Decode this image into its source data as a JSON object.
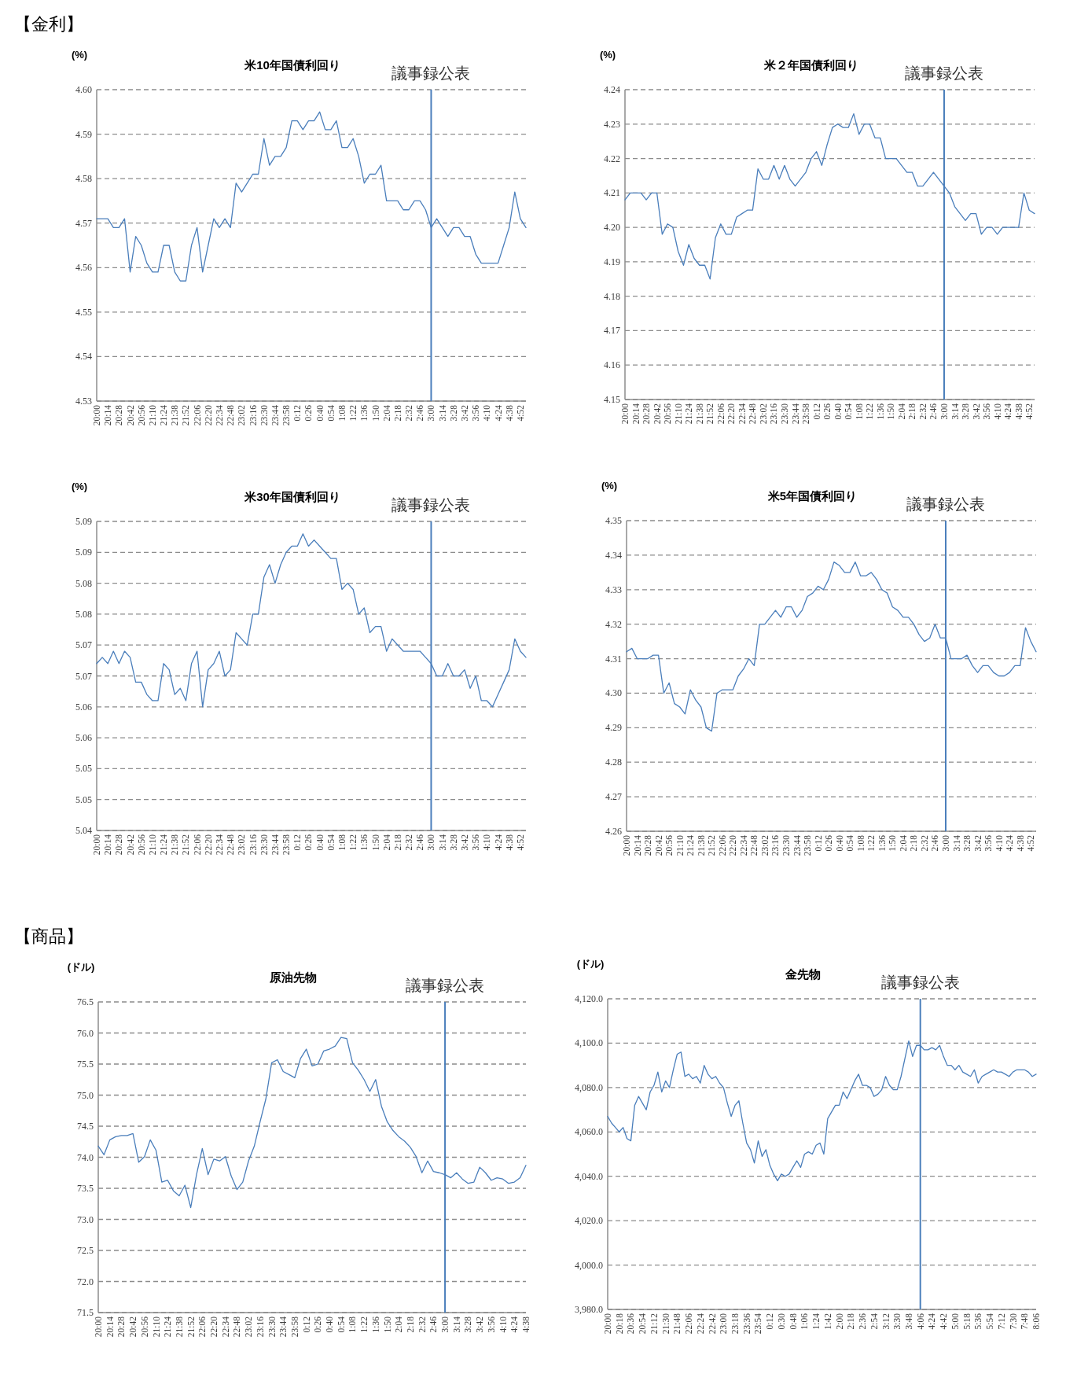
{
  "chart_data": [
    {
      "type": "line",
      "title": "米10年国債利回り",
      "ylabel": "(%)",
      "annotations": [
        "【金利】"
      ],
      "categories": [
        "20:00",
        null,
        "20:14",
        null,
        "20:28",
        null,
        "20:42",
        null,
        "20:56",
        null,
        "21:10",
        null,
        "21:24",
        null,
        "21:38",
        null,
        "21:52",
        null,
        "22:06",
        null,
        "22:20",
        null,
        "22:34",
        null,
        "22:48",
        null,
        "23:02",
        null,
        "23:16",
        null,
        "23:30",
        null,
        "23:44",
        null,
        "23:58",
        null,
        "0:12",
        null,
        "0:26",
        null,
        "0:40",
        null,
        "0:54",
        null,
        "1:08",
        null,
        "1:22",
        null,
        "1:36",
        null,
        "1:50",
        null,
        "2:04",
        null,
        "2:18",
        null,
        "2:32",
        null,
        "2:46",
        null,
        "3:00",
        null,
        "3:14",
        null,
        "3:28",
        null,
        "3:42",
        null,
        "3:56",
        null,
        "4:10",
        null,
        "4:24",
        null,
        "4:38",
        null,
        "4:52",
        null
      ],
      "series": [
        {
          "color": "#4a7ebb",
          "values": [
            4.571,
            4.571,
            4.571,
            4.569,
            4.569,
            4.571,
            4.559,
            4.567,
            4.565,
            4.561,
            4.559,
            4.559,
            4.565,
            4.565,
            4.559,
            4.557,
            4.557,
            4.565,
            4.569,
            4.559,
            4.565,
            4.571,
            4.569,
            4.571,
            4.569,
            4.579,
            4.577,
            4.579,
            4.581,
            4.581,
            4.589,
            4.583,
            4.585,
            4.585,
            4.587,
            4.593,
            4.593,
            4.591,
            4.593,
            4.593,
            4.595,
            4.591,
            4.591,
            4.593,
            4.587,
            4.587,
            4.589,
            4.585,
            4.579,
            4.581,
            4.581,
            4.583,
            4.575,
            4.575,
            4.575,
            4.573,
            4.573,
            4.575,
            4.575,
            4.573,
            4.569,
            4.571,
            4.569,
            4.567,
            4.569,
            4.569,
            4.567,
            4.567,
            4.563,
            4.561,
            4.561,
            4.561,
            4.561,
            4.565,
            4.569,
            4.577,
            4.571,
            4.569
          ]
        }
      ],
      "ylim": [
        4.53,
        4.6
      ],
      "yticks": [
        4.53,
        4.54,
        4.55,
        4.56,
        4.57,
        4.58,
        4.59,
        {
          "value": 4.6,
          "label": "4.60"
        }
      ],
      "grid": "y",
      "ref_lines": [
        {
          "axis": "x",
          "value": "3:00",
          "label": "議事録公表",
          "color": "#4a7ebb"
        }
      ]
    },
    {
      "type": "line",
      "title": "米２年国債利回り",
      "ylabel": "(%)",
      "categories": [
        "20:00",
        null,
        "20:14",
        null,
        "20:28",
        null,
        "20:42",
        null,
        "20:56",
        null,
        "21:10",
        null,
        "21:24",
        null,
        "21:38",
        null,
        "21:52",
        null,
        "22:06",
        null,
        "22:20",
        null,
        "22:34",
        null,
        "22:48",
        null,
        "23:02",
        null,
        "23:16",
        null,
        "23:30",
        null,
        "23:44",
        null,
        "23:58",
        null,
        "0:12",
        null,
        "0:26",
        null,
        "0:40",
        null,
        "0:54",
        null,
        "1:08",
        null,
        "1:22",
        null,
        "1:36",
        null,
        "1:50",
        null,
        "2:04",
        null,
        "2:18",
        null,
        "2:32",
        null,
        "2:46",
        null,
        "3:00",
        null,
        "3:14",
        null,
        "3:28",
        null,
        "3:42",
        null,
        "3:56",
        null,
        "4:10",
        null,
        "4:24",
        null,
        "4:38",
        null,
        "4:52",
        null
      ],
      "series": [
        {
          "color": "#4a7ebb",
          "values": [
            4.208,
            4.21,
            4.21,
            4.21,
            4.208,
            4.21,
            4.21,
            4.198,
            4.201,
            4.2,
            4.193,
            4.189,
            4.195,
            4.191,
            4.189,
            4.189,
            4.185,
            4.197,
            4.201,
            4.198,
            4.198,
            4.203,
            4.204,
            4.205,
            4.205,
            4.217,
            4.214,
            4.214,
            4.218,
            4.214,
            4.218,
            4.214,
            4.212,
            4.214,
            4.216,
            4.22,
            4.222,
            4.218,
            4.224,
            4.229,
            4.23,
            4.229,
            4.229,
            4.233,
            4.227,
            4.23,
            4.23,
            4.226,
            4.226,
            4.22,
            4.22,
            4.22,
            4.218,
            4.216,
            4.216,
            4.212,
            4.212,
            4.214,
            4.216,
            4.214,
            4.212,
            4.21,
            4.206,
            4.204,
            4.202,
            4.204,
            4.204,
            4.198,
            4.2,
            4.2,
            4.198,
            4.2,
            4.2,
            4.2,
            4.2,
            4.21,
            4.205,
            4.204
          ]
        }
      ],
      "ylim": [
        4.15,
        4.24
      ],
      "yticks": [
        4.15,
        4.16,
        4.17,
        4.18,
        4.19,
        {
          "value": 4.2,
          "label": "4.20"
        },
        4.21,
        4.22,
        4.23,
        4.24
      ],
      "grid": "y",
      "ref_lines": [
        {
          "axis": "x",
          "value": "3:00",
          "label": "議事録公表",
          "color": "#4a7ebb"
        }
      ]
    },
    {
      "type": "line",
      "title": "米30年国債利回り",
      "ylabel": "(%)",
      "categories": [
        "20:00",
        null,
        "20:14",
        null,
        "20:28",
        null,
        "20:42",
        null,
        "20:56",
        null,
        "21:10",
        null,
        "21:24",
        null,
        "21:38",
        null,
        "21:52",
        null,
        "22:06",
        null,
        "22:20",
        null,
        "22:34",
        null,
        "22:48",
        null,
        "23:02",
        null,
        "23:16",
        null,
        "23:30",
        null,
        "23:44",
        null,
        "23:58",
        null,
        "0:12",
        null,
        "0:26",
        null,
        "0:40",
        null,
        "0:54",
        null,
        "1:08",
        null,
        "1:22",
        null,
        "1:36",
        null,
        "1:50",
        null,
        "2:04",
        null,
        "2:18",
        null,
        "2:32",
        null,
        "2:46",
        null,
        "3:00",
        null,
        "3:14",
        null,
        "3:28",
        null,
        "3:42",
        null,
        "3:56",
        null,
        "4:10",
        null,
        "4:24",
        null,
        "4:38",
        null,
        "4:52",
        null
      ],
      "series": [
        {
          "color": "#4a7ebb",
          "values": [
            5.067,
            5.068,
            5.067,
            5.069,
            5.067,
            5.069,
            5.068,
            5.064,
            5.064,
            5.062,
            5.061,
            5.061,
            5.067,
            5.066,
            5.062,
            5.063,
            5.061,
            5.067,
            5.069,
            5.06,
            5.066,
            5.067,
            5.069,
            5.065,
            5.066,
            5.072,
            5.071,
            5.07,
            5.075,
            5.075,
            5.081,
            5.083,
            5.08,
            5.083,
            5.085,
            5.086,
            5.086,
            5.088,
            5.086,
            5.087,
            5.086,
            5.085,
            5.084,
            5.084,
            5.079,
            5.08,
            5.079,
            5.075,
            5.076,
            5.072,
            5.073,
            5.073,
            5.069,
            5.071,
            5.07,
            5.069,
            5.069,
            5.069,
            5.069,
            5.068,
            5.067,
            5.065,
            5.065,
            5.067,
            5.065,
            5.065,
            5.066,
            5.063,
            5.065,
            5.061,
            5.061,
            5.06,
            5.062,
            5.064,
            5.066,
            5.071,
            5.069,
            5.068
          ]
        }
      ],
      "ylim": [
        5.04,
        5.09
      ],
      "yticks": [
        {
          "value": 5.04,
          "label": "5.04"
        },
        {
          "value": 5.045,
          "label": "5.05"
        },
        {
          "value": 5.05,
          "label": "5.05"
        },
        {
          "value": 5.055,
          "label": "5.06"
        },
        {
          "value": 5.06,
          "label": "5.06"
        },
        {
          "value": 5.065,
          "label": "5.07"
        },
        {
          "value": 5.07,
          "label": "5.07"
        },
        {
          "value": 5.075,
          "label": "5.08"
        },
        {
          "value": 5.08,
          "label": "5.08"
        },
        {
          "value": 5.085,
          "label": "5.09"
        },
        {
          "value": 5.09,
          "label": "5.09"
        }
      ],
      "grid": "y",
      "ref_lines": [
        {
          "axis": "x",
          "value": "3:00",
          "label": "議事録公表",
          "color": "#4a7ebb"
        }
      ]
    },
    {
      "type": "line",
      "title": "米5年国債利回り",
      "ylabel": "(%)",
      "categories": [
        "20:00",
        null,
        "20:14",
        null,
        "20:28",
        null,
        "20:42",
        null,
        "20:56",
        null,
        "21:10",
        null,
        "21:24",
        null,
        "21:38",
        null,
        "21:52",
        null,
        "22:06",
        null,
        "22:20",
        null,
        "22:34",
        null,
        "22:48",
        null,
        "23:02",
        null,
        "23:16",
        null,
        "23:30",
        null,
        "23:44",
        null,
        "23:58",
        null,
        "0:12",
        null,
        "0:26",
        null,
        "0:40",
        null,
        "0:54",
        null,
        "1:08",
        null,
        "1:22",
        null,
        "1:36",
        null,
        "1:50",
        null,
        "2:04",
        null,
        "2:18",
        null,
        "2:32",
        null,
        "2:46",
        null,
        "3:00",
        null,
        "3:14",
        null,
        "3:28",
        null,
        "3:42",
        null,
        "3:56",
        null,
        "4:10",
        null,
        "4:24",
        null,
        "4:38",
        null,
        "4:52",
        null
      ],
      "series": [
        {
          "color": "#4a7ebb",
          "values": [
            4.312,
            4.313,
            4.31,
            4.31,
            4.31,
            4.311,
            4.311,
            4.3,
            4.303,
            4.297,
            4.296,
            4.294,
            4.301,
            4.298,
            4.296,
            4.29,
            4.289,
            4.3,
            4.301,
            4.301,
            4.301,
            4.305,
            4.307,
            4.31,
            4.308,
            4.32,
            4.32,
            4.322,
            4.324,
            4.322,
            4.325,
            4.325,
            4.322,
            4.324,
            4.328,
            4.329,
            4.331,
            4.33,
            4.333,
            4.338,
            4.337,
            4.335,
            4.335,
            4.338,
            4.334,
            4.334,
            4.335,
            4.333,
            4.33,
            4.329,
            4.325,
            4.324,
            4.322,
            4.322,
            4.32,
            4.317,
            4.315,
            4.316,
            4.32,
            4.316,
            4.316,
            4.31,
            4.31,
            4.31,
            4.311,
            4.308,
            4.306,
            4.308,
            4.308,
            4.306,
            4.305,
            4.305,
            4.306,
            4.308,
            4.308,
            4.319,
            4.315,
            4.312
          ]
        }
      ],
      "ylim": [
        4.26,
        4.35
      ],
      "yticks": [
        4.26,
        4.27,
        4.28,
        4.29,
        {
          "value": 4.3,
          "label": "4.30"
        },
        4.31,
        4.32,
        4.33,
        4.34,
        4.35
      ],
      "grid": "y",
      "ref_lines": [
        {
          "axis": "x",
          "value": "3:00",
          "label": "議事録公表",
          "color": "#4a7ebb"
        }
      ]
    },
    {
      "type": "line",
      "title": "原油先物",
      "ylabel": "(ドル)",
      "annotations": [
        "【商品】"
      ],
      "categories": [
        "20:00",
        null,
        "20:14",
        null,
        "20:28",
        null,
        "20:42",
        null,
        "20:56",
        null,
        "21:10",
        null,
        "21:24",
        null,
        "21:38",
        null,
        "21:52",
        null,
        "22:06",
        null,
        "22:20",
        null,
        "22:34",
        null,
        "22:48",
        null,
        "23:02",
        null,
        "23:16",
        null,
        "23:30",
        null,
        "23:44",
        null,
        "23:58",
        null,
        "0:12",
        null,
        "0:26",
        null,
        "0:40",
        null,
        "0:54",
        null,
        "1:08",
        null,
        "1:22",
        null,
        "1:36",
        null,
        "1:50",
        null,
        "2:04",
        null,
        "2:18",
        null,
        "2:32",
        null,
        "2:46",
        null,
        "3:00",
        null,
        "3:14",
        null,
        "3:28",
        null,
        "3:42",
        null,
        "3:56",
        null,
        "4:10",
        null,
        "4:24",
        null,
        "4:38"
      ],
      "series": [
        {
          "color": "#4a7ebb",
          "values": [
            74.18,
            74.04,
            74.28,
            74.33,
            74.35,
            74.35,
            74.38,
            73.92,
            74.01,
            74.28,
            74.11,
            73.6,
            73.63,
            73.46,
            73.38,
            73.55,
            73.19,
            73.72,
            74.14,
            73.72,
            73.97,
            73.94,
            74.01,
            73.7,
            73.48,
            73.6,
            73.94,
            74.18,
            74.57,
            74.94,
            75.52,
            75.57,
            75.38,
            75.33,
            75.28,
            75.59,
            75.74,
            75.47,
            75.5,
            75.71,
            75.74,
            75.79,
            75.93,
            75.91,
            75.52,
            75.4,
            75.25,
            75.06,
            75.25,
            74.82,
            74.57,
            74.43,
            74.33,
            74.26,
            74.16,
            74.01,
            73.75,
            73.94,
            73.77,
            73.75,
            73.72,
            73.67,
            73.75,
            73.65,
            73.58,
            73.6,
            73.84,
            73.75,
            73.63,
            73.67,
            73.65,
            73.58,
            73.6,
            73.67,
            73.87
          ]
        }
      ],
      "ylim": [
        71.5,
        76.5
      ],
      "yticks": [
        71.5,
        {
          "value": 72,
          "label": "72.0"
        },
        72.5,
        {
          "value": 73,
          "label": "73.0"
        },
        73.5,
        {
          "value": 74,
          "label": "74.0"
        },
        74.5,
        {
          "value": 75,
          "label": "75.0"
        },
        75.5,
        {
          "value": 76,
          "label": "76.0"
        },
        76.5
      ],
      "grid": "y",
      "ref_lines": [
        {
          "axis": "x",
          "value": "3:00",
          "label": "議事録公表",
          "color": "#4a7ebb"
        }
      ]
    },
    {
      "type": "line",
      "title": "金先物",
      "ylabel": "(ドル)",
      "categories": [
        "20:00",
        null,
        null,
        "20:18",
        null,
        null,
        "20:36",
        null,
        null,
        "20:54",
        null,
        null,
        "21:12",
        null,
        null,
        "21:30",
        null,
        null,
        "21:48",
        null,
        null,
        "22:06",
        null,
        null,
        "22:24",
        null,
        null,
        "22:42",
        null,
        null,
        "23:00",
        null,
        null,
        "23:18",
        null,
        null,
        "23:36",
        null,
        null,
        "23:54",
        null,
        null,
        "0:12",
        null,
        null,
        "0:30",
        null,
        null,
        "0:48",
        null,
        null,
        "1:06",
        null,
        null,
        "1:24",
        null,
        null,
        "1:42",
        null,
        null,
        "2:00",
        null,
        null,
        "2:18",
        null,
        null,
        "2:36",
        null,
        null,
        "2:54",
        null,
        null,
        "3:12",
        null,
        null,
        "3:30",
        null,
        null,
        "3:48",
        null,
        null,
        "4:06",
        null,
        null,
        "4:24",
        null,
        null,
        "4:42",
        null,
        null,
        "5:00",
        null,
        null,
        "5:18",
        null,
        null,
        "5:36",
        null,
        null,
        "5:54",
        null,
        null,
        "7:12",
        null,
        null,
        "7:30",
        null,
        null,
        "7:48",
        null,
        null,
        "8:06"
      ],
      "series": [
        {
          "color": "#4a7ebb",
          "values": [
            4067,
            4064,
            4062,
            4060,
            4062,
            4057,
            4056,
            4072,
            4076,
            4073,
            4070,
            4078,
            4081,
            4087,
            4078,
            4083,
            4080,
            4088,
            4095,
            4096,
            4085,
            4086,
            4084,
            4085,
            4082,
            4090,
            4086,
            4084,
            4085,
            4082,
            4080,
            4073,
            4067,
            4072,
            4074,
            4064,
            4055,
            4052,
            4046,
            4056,
            4049,
            4052,
            4045,
            4041,
            4038,
            4041,
            4040,
            4041,
            4044,
            4047,
            4044,
            4050,
            4051,
            4050,
            4054,
            4055,
            4050,
            4066,
            4069,
            4072,
            4072,
            4078,
            4075,
            4079,
            4083,
            4086,
            4081,
            4081,
            4080,
            4076,
            4077,
            4079,
            4085,
            4081,
            4079,
            4079,
            4085,
            4093,
            4101,
            4094,
            4099,
            4099,
            4097,
            4097,
            4098,
            4097,
            4099,
            4094,
            4090,
            4090,
            4088,
            4090,
            4087,
            4086,
            4085,
            4088,
            4082,
            4085,
            4086,
            4087,
            4088,
            4087,
            4087,
            4086,
            4085,
            4087,
            4088,
            4088,
            4088,
            4087,
            4085,
            4086
          ]
        }
      ],
      "ylim": [
        3980,
        4120
      ],
      "yticks": [
        {
          "value": 3980,
          "label": "3,980.0"
        },
        {
          "value": 4000,
          "label": "4,000.0"
        },
        {
          "value": 4020,
          "label": "4,020.0"
        },
        {
          "value": 4040,
          "label": "4,040.0"
        },
        {
          "value": 4060,
          "label": "4,060.0"
        },
        {
          "value": 4080,
          "label": "4,080.0"
        },
        {
          "value": 4100,
          "label": "4,100.0"
        },
        {
          "value": 4120,
          "label": "4,120.0"
        }
      ],
      "grid": "y",
      "ref_lines": [
        {
          "axis": "x",
          "value": "4:06",
          "label": "議事録公表",
          "color": "#4a7ebb"
        }
      ]
    }
  ]
}
